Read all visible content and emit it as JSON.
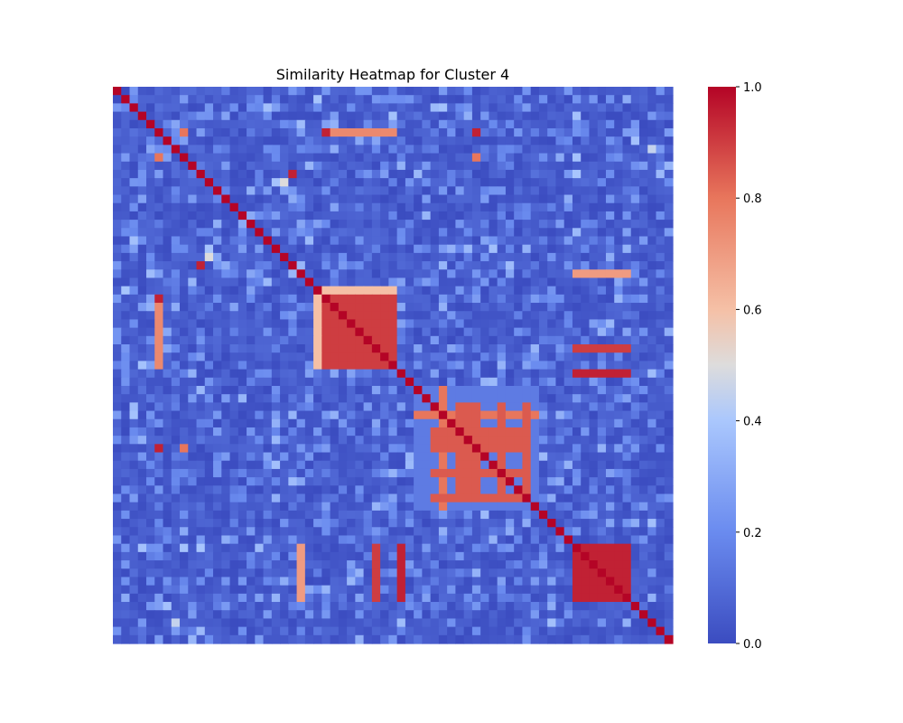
{
  "chart_data": {
    "type": "heatmap",
    "title": "Similarity Heatmap for Cluster 4",
    "xlabel": "",
    "ylabel": "",
    "n": 67,
    "color_scale": {
      "name": "coolwarm",
      "range": [
        0.0,
        1.0
      ],
      "stops": [
        {
          "v": 0.0,
          "c": "#3b4cc0"
        },
        {
          "v": 0.2,
          "c": "#6a8bef"
        },
        {
          "v": 0.4,
          "c": "#aac7fd"
        },
        {
          "v": 0.5,
          "c": "#dddcdc"
        },
        {
          "v": 0.6,
          "c": "#f5c0a6"
        },
        {
          "v": 0.8,
          "c": "#e8765c"
        },
        {
          "v": 1.0,
          "c": "#b40426"
        }
      ]
    },
    "colorbar": {
      "ticks": [
        0.0,
        0.2,
        0.4,
        0.6,
        0.8,
        1.0
      ],
      "tick_labels": [
        "0.0",
        "0.2",
        "0.4",
        "0.6",
        "0.8",
        "1.0"
      ]
    },
    "background_value": 0.05,
    "diagonal_value": 1.0,
    "blocks": [
      {
        "rows": [
          24,
          34
        ],
        "cols": [
          24,
          34
        ],
        "value": 0.9
      },
      {
        "rows": [
          24,
          34
        ],
        "cols": [
          24,
          25
        ],
        "value": 0.6
      },
      {
        "rows": [
          24,
          25
        ],
        "cols": [
          24,
          34
        ],
        "value": 0.6
      },
      {
        "rows": [
          25,
          34
        ],
        "cols": [
          5,
          6
        ],
        "value": 0.75
      },
      {
        "rows": [
          5,
          6
        ],
        "cols": [
          25,
          34
        ],
        "value": 0.75
      },
      {
        "rows": [
          36,
          51
        ],
        "cols": [
          36,
          51
        ],
        "value": 0.15
      },
      {
        "rows": [
          39,
          40
        ],
        "cols": [
          36,
          51
        ],
        "value": 0.8
      },
      {
        "rows": [
          36,
          51
        ],
        "cols": [
          39,
          40
        ],
        "value": 0.8
      },
      {
        "rows": [
          41,
          44
        ],
        "cols": [
          38,
          50
        ],
        "value": 0.85
      },
      {
        "rows": [
          46,
          47
        ],
        "cols": [
          38,
          50
        ],
        "value": 0.85
      },
      {
        "rows": [
          49,
          50
        ],
        "cols": [
          38,
          50
        ],
        "value": 0.85
      },
      {
        "rows": [
          38,
          50
        ],
        "cols": [
          41,
          44
        ],
        "value": 0.85
      },
      {
        "rows": [
          38,
          50
        ],
        "cols": [
          46,
          47
        ],
        "value": 0.85
      },
      {
        "rows": [
          38,
          50
        ],
        "cols": [
          49,
          50
        ],
        "value": 0.85
      },
      {
        "rows": [
          55,
          62
        ],
        "cols": [
          55,
          62
        ],
        "value": 0.95
      },
      {
        "rows": [
          55,
          62
        ],
        "cols": [
          34,
          35
        ],
        "value": 0.95
      },
      {
        "rows": [
          34,
          35
        ],
        "cols": [
          55,
          62
        ],
        "value": 0.95
      },
      {
        "rows": [
          55,
          62
        ],
        "cols": [
          22,
          23
        ],
        "value": 0.7
      },
      {
        "rows": [
          22,
          23
        ],
        "cols": [
          55,
          62
        ],
        "value": 0.7
      },
      {
        "rows": [
          31,
          32
        ],
        "cols": [
          55,
          62
        ],
        "value": 0.9
      },
      {
        "rows": [
          55,
          62
        ],
        "cols": [
          31,
          32
        ],
        "value": 0.9
      },
      {
        "rows": [
          5,
          6
        ],
        "cols": [
          8,
          9
        ],
        "value": 0.8
      },
      {
        "rows": [
          8,
          9
        ],
        "cols": [
          5,
          6
        ],
        "value": 0.8
      },
      {
        "rows": [
          5,
          6
        ],
        "cols": [
          43,
          44
        ],
        "value": 0.95
      },
      {
        "rows": [
          43,
          44
        ],
        "cols": [
          5,
          6
        ],
        "value": 0.95
      },
      {
        "rows": [
          8,
          9
        ],
        "cols": [
          43,
          44
        ],
        "value": 0.8
      },
      {
        "rows": [
          43,
          44
        ],
        "cols": [
          8,
          9
        ],
        "value": 0.8
      },
      {
        "rows": [
          25,
          26
        ],
        "cols": [
          5,
          6
        ],
        "value": 0.95
      },
      {
        "rows": [
          5,
          6
        ],
        "cols": [
          25,
          26
        ],
        "value": 0.95
      },
      {
        "rows": [
          21,
          22
        ],
        "cols": [
          10,
          11
        ],
        "value": 0.95
      },
      {
        "rows": [
          10,
          11
        ],
        "cols": [
          21,
          22
        ],
        "value": 0.95
      },
      {
        "rows": [
          20,
          21
        ],
        "cols": [
          11,
          12
        ],
        "value": 0.5
      },
      {
        "rows": [
          11,
          12
        ],
        "cols": [
          20,
          21
        ],
        "value": 0.5
      },
      {
        "rows": [
          42,
          43
        ],
        "cols": [
          19,
          20
        ],
        "value": 0.35
      },
      {
        "rows": [
          19,
          20
        ],
        "cols": [
          42,
          43
        ],
        "value": 0.35
      },
      {
        "rows": [
          64,
          65
        ],
        "cols": [
          7,
          8
        ],
        "value": 0.45
      },
      {
        "rows": [
          7,
          8
        ],
        "cols": [
          64,
          65
        ],
        "value": 0.45
      },
      {
        "rows": [
          7,
          8
        ],
        "cols": [
          64,
          65
        ],
        "value": 0.45
      }
    ]
  }
}
